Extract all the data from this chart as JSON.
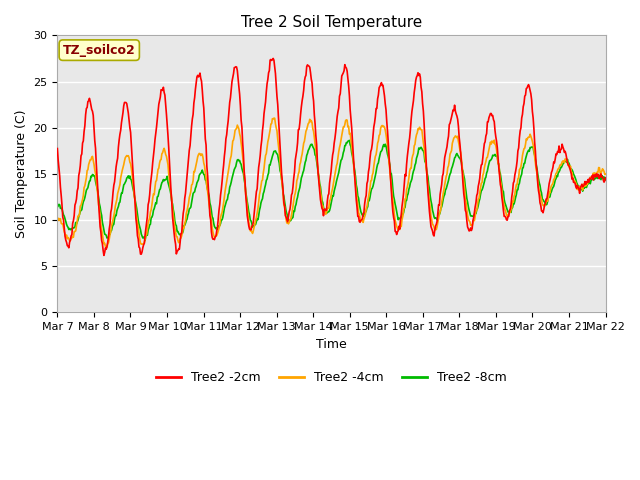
{
  "title": "Tree 2 Soil Temperature",
  "xlabel": "Time",
  "ylabel": "Soil Temperature (C)",
  "ylim": [
    0,
    30
  ],
  "yticks": [
    0,
    5,
    10,
    15,
    20,
    25,
    30
  ],
  "xlabels": [
    "Mar 7",
    "Mar 8",
    "Mar 9",
    "Mar 10",
    "Mar 11",
    "Mar 12",
    "Mar 13",
    "Mar 14",
    "Mar 15",
    "Mar 16",
    "Mar 17",
    "Mar 18",
    "Mar 19",
    "Mar 20",
    "Mar 21",
    "Mar 22"
  ],
  "line_colors": [
    "#FF0000",
    "#FFA500",
    "#00BB00"
  ],
  "line_labels": [
    "Tree2 -2cm",
    "Tree2 -4cm",
    "Tree2 -8cm"
  ],
  "line_width": 1.2,
  "fig_bg_color": "#FFFFFF",
  "plot_bg_color": "#E8E8E8",
  "annotation_text": "TZ_soilco2",
  "annotation_color": "#880000",
  "annotation_bg": "#FFFFCC",
  "annotation_border": "#AAAA00",
  "grid_color": "#FFFFFF",
  "title_fontsize": 11,
  "tick_fontsize": 8,
  "label_fontsize": 9,
  "legend_fontsize": 9,
  "peaks_2cm": [
    20.0,
    23.5,
    22.5,
    24.7,
    26.1,
    26.6,
    27.9,
    26.6,
    26.6,
    24.7,
    26.1,
    21.5,
    21.4,
    25.0,
    16.5,
    14.3
  ],
  "troughs_2cm": [
    7.5,
    6.5,
    6.5,
    6.0,
    7.5,
    8.5,
    9.8,
    10.8,
    10.1,
    8.5,
    8.5,
    8.5,
    9.8,
    10.2,
    13.2,
    14.2
  ],
  "peaks_4cm": [
    10.5,
    17.2,
    17.0,
    17.5,
    17.2,
    20.3,
    21.0,
    20.8,
    20.6,
    20.2,
    20.0,
    19.0,
    18.6,
    19.2,
    16.2,
    15.2
  ],
  "troughs_4cm": [
    8.2,
    7.1,
    7.3,
    7.5,
    8.0,
    8.5,
    9.0,
    11.0,
    10.2,
    9.0,
    9.0,
    9.0,
    10.2,
    11.0,
    13.0,
    14.0
  ],
  "peaks_8cm": [
    11.8,
    15.0,
    14.7,
    14.5,
    15.2,
    16.5,
    17.5,
    18.2,
    18.6,
    18.0,
    17.8,
    17.0,
    17.2,
    18.0,
    16.2,
    14.5
  ],
  "troughs_8cm": [
    9.2,
    8.2,
    8.1,
    8.0,
    9.0,
    9.2,
    9.5,
    10.7,
    10.7,
    10.1,
    10.1,
    10.2,
    10.6,
    11.2,
    13.0,
    14.0
  ],
  "n_days": 15,
  "pts_per_day": 48
}
